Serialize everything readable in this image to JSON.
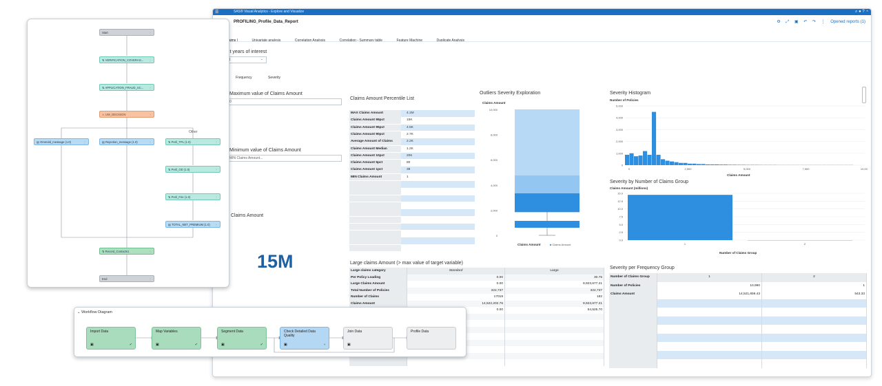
{
  "app": {
    "title": "SAS® Visual Analytics - Explore and Visualize",
    "report_name": "PROFILING_Profile_Data_Report",
    "opened_reports": "Opened reports (1)",
    "tabs": [
      "Claims",
      "Univariate analysis",
      "Correlation Analysis",
      "Correlation - Summary table",
      "Feature Machine",
      "Duplicate Analysis"
    ]
  },
  "filters": {
    "years_label": "ct years of interest",
    "years_value": "1",
    "buttons": [
      "Frequency",
      "Severity"
    ],
    "max_label": "Maximum value of Claims Amount",
    "max_value": "0",
    "min_label": "Minimum value of Claims Amount",
    "min_placeholder": "MIN Claims Amount...",
    "claims_amount_label": "Claims Amount",
    "kpi_value": "15M"
  },
  "percentile_list": {
    "title": "Claims Amount Percentile List",
    "rows": [
      {
        "label": "MAX Claims Amount",
        "value": "4.1M"
      },
      {
        "label": "Claims Amount 99pct",
        "value": "15K"
      },
      {
        "label": "Claims Amount 95pct",
        "value": "4.5K"
      },
      {
        "label": "Claims Amount 90pct",
        "value": "2.7K"
      },
      {
        "label": "Average Amount of Claims",
        "value": "2.2K"
      },
      {
        "label": "Claims Amount Median",
        "value": "1.2K"
      },
      {
        "label": "Claims Amount 10pct",
        "value": "206"
      },
      {
        "label": "Claims Amount 5pct",
        "value": "80"
      },
      {
        "label": "Claims Amount 1pct",
        "value": "38"
      },
      {
        "label": "MIN Claims Amount",
        "value": "1"
      }
    ]
  },
  "outliers": {
    "title": "Outliers Severity Exploration",
    "ylabel": "Claims Amount",
    "ticks": [
      "10,000",
      "8,000",
      "6,000",
      "4,000",
      "2,000",
      "0"
    ],
    "xlabel": "Claims Amount",
    "legend": "Claims Amount"
  },
  "histogram": {
    "title": "Severity Histogram",
    "ylabel": "Number of Policies",
    "yticks": [
      "5,000",
      "4,000",
      "3,000",
      "2,000",
      "1,000",
      "0"
    ],
    "xticks": [
      "0",
      "2,500",
      "5,000",
      "7,500",
      "10,000"
    ],
    "xlabel": "Claims Amount"
  },
  "severity_group": {
    "title": "Severity by Number of Claims Group",
    "ylabel": "Claims Amount (millions)",
    "yticks": [
      "15.0",
      "12.5",
      "10.0",
      "7.5",
      "5.0",
      "2.5",
      "0.0"
    ],
    "xticks": [
      "1",
      "2"
    ],
    "xlabel": "Number of Claims Group"
  },
  "large_claims": {
    "title": "Large claims Amount (> max value of target variable)",
    "header": [
      "Large claims category",
      "Standard",
      "Large"
    ],
    "rows": [
      [
        "Per Policy Loading",
        "0.00",
        "30.75"
      ],
      [
        "Large Claims Amount",
        "0.00",
        "9,923,677.21"
      ],
      [
        "Total Number of Policies",
        "322,737",
        "322,737"
      ],
      [
        "Number of Claims",
        "17018",
        "182"
      ],
      [
        "Claims Amount",
        "14,522,202.76",
        "9,923,677.21"
      ],
      [
        "",
        "0.00",
        "54,525.70"
      ]
    ]
  },
  "frequency_group": {
    "title": "Severity per Frequency Group",
    "header": [
      "Number of Claims Group",
      "1",
      "2"
    ],
    "rows": [
      [
        "Number of Policies",
        "10,990",
        "1"
      ],
      [
        "Claims Amount",
        "14,521,659.43",
        "543.33"
      ]
    ]
  },
  "process": {
    "nodes": [
      {
        "label": "Start",
        "style": "grey"
      },
      {
        "label": "VERIFICATION_COVERAG...",
        "style": "teal"
      },
      {
        "label": "APPLICATION_FRAUD_SC...",
        "style": "teal"
      },
      {
        "label": "UW_DECISION",
        "style": "orange"
      },
      {
        "label": "Ommold_message (1.0)",
        "style": "blue"
      },
      {
        "label": "Rejection_message (1.0)",
        "style": "blue"
      },
      {
        "label": "Peril_TPL (1.0)",
        "style": "teal"
      },
      {
        "label": "Peril_OD (1.0)",
        "style": "teal"
      },
      {
        "label": "Peril_Fire (1.0)",
        "style": "teal"
      },
      {
        "label": "TOTAL_NET_PREMIUM (1.0)",
        "style": "blue"
      },
      {
        "label": "Record_Contacts1",
        "style": "green"
      },
      {
        "label": "End",
        "style": "grey"
      }
    ],
    "branch_label": "Other"
  },
  "workflow": {
    "title": "Workflow Diagram",
    "steps": [
      {
        "label": "Import Data",
        "color": "#a8dcbc"
      },
      {
        "label": "Map Variables",
        "color": "#a8dcbc"
      },
      {
        "label": "Segment Data",
        "color": "#a8dcbc"
      },
      {
        "label": "Check Detailed Data Quality",
        "color": "#b4d8f4"
      },
      {
        "label": "Join Data",
        "color": "#eceeF0"
      },
      {
        "label": "Profile Data",
        "color": "#eceef0"
      }
    ]
  }
}
